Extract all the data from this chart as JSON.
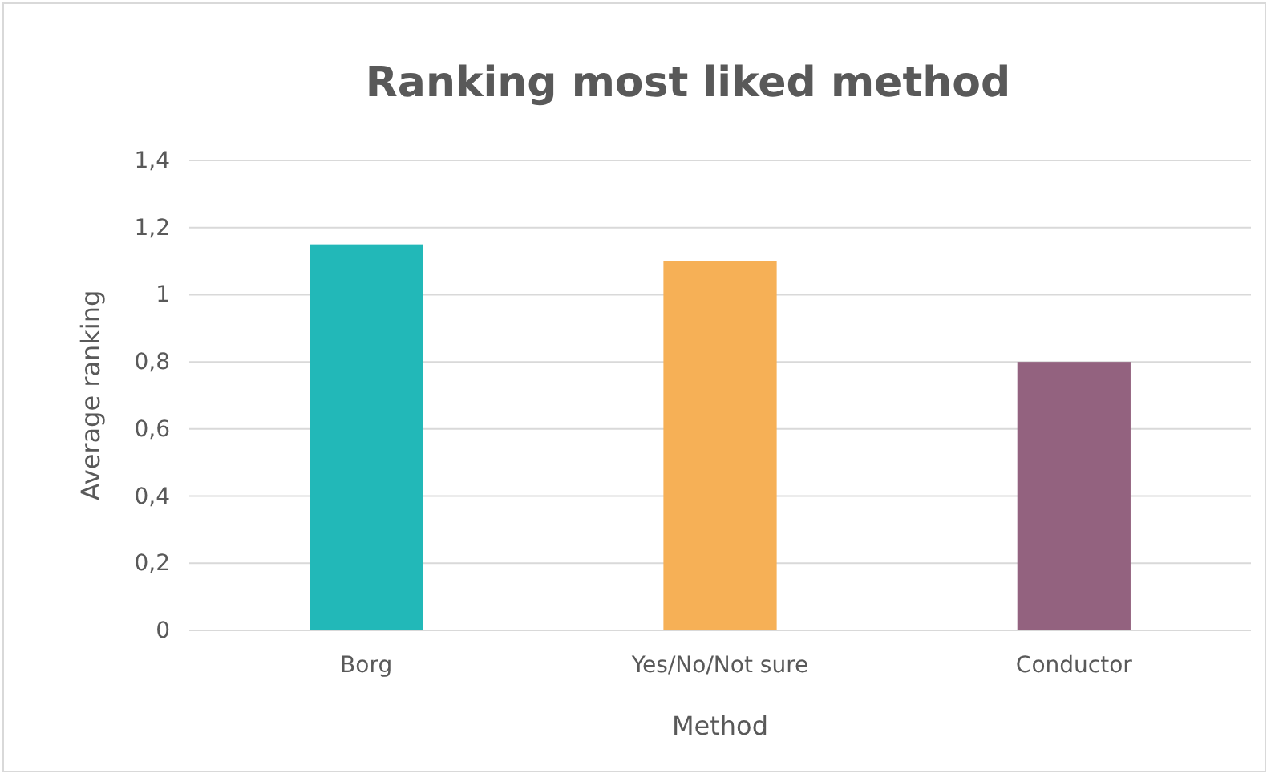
{
  "chart_data": {
    "type": "bar",
    "title": "Ranking most liked method",
    "xlabel": "Method",
    "ylabel": "Average ranking",
    "categories": [
      "Borg",
      "Yes/No/Not sure",
      "Conductor"
    ],
    "values": [
      1.15,
      1.1,
      0.8
    ],
    "colors": [
      "#22b8b8",
      "#f6b056",
      "#93627f"
    ],
    "ylim": [
      0,
      1.4
    ],
    "yticks": [
      0,
      {
        "value": 0.2,
        "label": "0,2"
      },
      {
        "value": 0.4,
        "label": "0,4"
      },
      {
        "value": 0.6,
        "label": "0,6"
      },
      {
        "value": 0.8,
        "label": "0,8"
      },
      1,
      {
        "value": 1.2,
        "label": "1,2"
      },
      {
        "value": 1.4,
        "label": "1,4"
      }
    ],
    "grid": "y"
  }
}
